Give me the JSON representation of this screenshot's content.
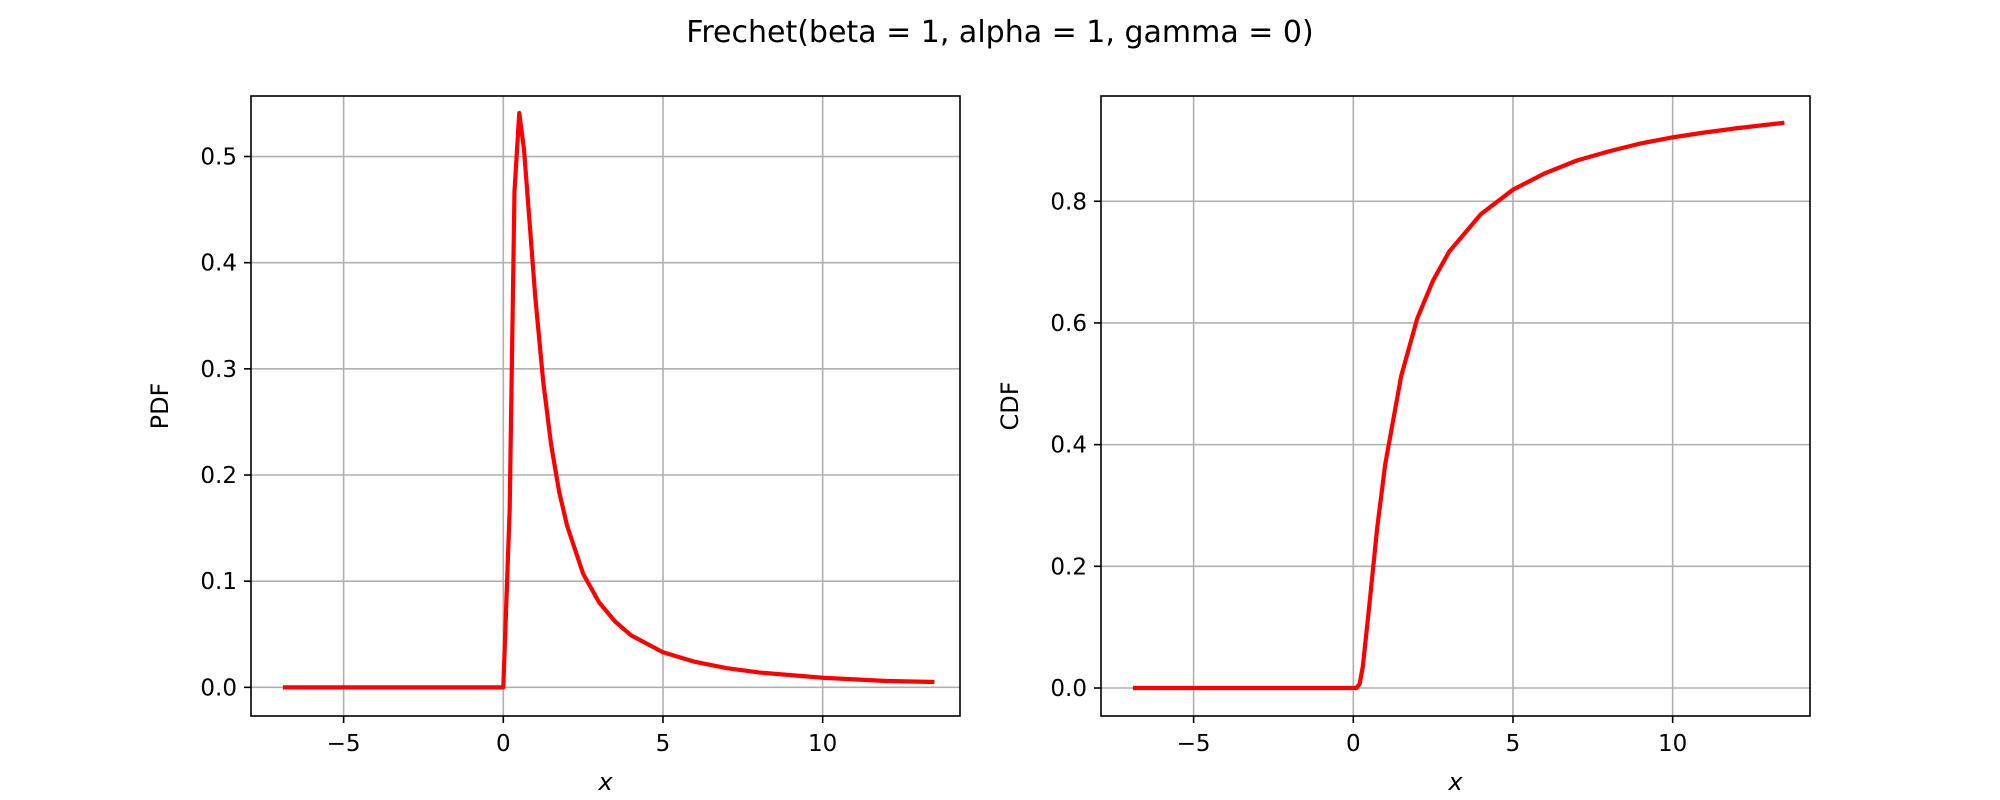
{
  "figure": {
    "suptitle": "Frechet(beta = 1, alpha = 1, gamma = 0)"
  },
  "colors": {
    "curve": "#ff0000",
    "grid": "#b0b0b0",
    "axes": "#000000"
  },
  "chart_data": [
    {
      "type": "line",
      "title": "",
      "xlabel": "x",
      "ylabel": "PDF",
      "xlim": [
        -7.9,
        14.3
      ],
      "ylim": [
        -0.027,
        0.557
      ],
      "xticks": [
        -5,
        0,
        5,
        10
      ],
      "xtick_labels": [
        "−5",
        "0",
        "5",
        "10"
      ],
      "yticks": [
        0.0,
        0.1,
        0.2,
        0.3,
        0.4,
        0.5
      ],
      "ytick_labels": [
        "0.0",
        "0.1",
        "0.2",
        "0.3",
        "0.4",
        "0.5"
      ],
      "grid": true,
      "legend": "none",
      "series": [
        {
          "x": [
            -6.9,
            -5.0,
            -3.0,
            -1.0,
            0.0,
            0.2,
            0.35,
            0.5,
            0.65,
            0.8,
            1.0,
            1.25,
            1.5,
            1.75,
            2.0,
            2.5,
            3.0,
            3.5,
            4.0,
            5.0,
            6.0,
            7.0,
            8.0,
            10.0,
            12.0,
            13.5
          ],
          "y": [
            0.0,
            0.0,
            0.0,
            0.0,
            0.0,
            0.168,
            0.467,
            0.541,
            0.506,
            0.447,
            0.368,
            0.288,
            0.228,
            0.184,
            0.152,
            0.107,
            0.08,
            0.062,
            0.049,
            0.033,
            0.024,
            0.018,
            0.014,
            0.009,
            0.006,
            0.005
          ]
        }
      ]
    },
    {
      "type": "line",
      "title": "",
      "xlabel": "x",
      "ylabel": "CDF",
      "xlim": [
        -7.9,
        14.3
      ],
      "ylim": [
        -0.046,
        0.973
      ],
      "xticks": [
        -5,
        0,
        5,
        10
      ],
      "xtick_labels": [
        "−5",
        "0",
        "5",
        "10"
      ],
      "yticks": [
        0.0,
        0.2,
        0.4,
        0.6,
        0.8
      ],
      "ytick_labels": [
        "0.0",
        "0.2",
        "0.4",
        "0.6",
        "0.8"
      ],
      "grid": true,
      "legend": "none",
      "series": [
        {
          "x": [
            -6.9,
            -5.0,
            -3.0,
            -1.0,
            0.0,
            0.1,
            0.2,
            0.3,
            0.5,
            0.75,
            1.0,
            1.5,
            2.0,
            2.5,
            3.0,
            4.0,
            5.0,
            6.0,
            7.0,
            8.0,
            9.0,
            10.0,
            11.0,
            12.0,
            13.5
          ],
          "y": [
            0.0,
            0.0,
            0.0,
            0.0,
            0.0,
            0.0,
            0.007,
            0.036,
            0.135,
            0.264,
            0.368,
            0.513,
            0.607,
            0.67,
            0.717,
            0.779,
            0.819,
            0.846,
            0.867,
            0.882,
            0.895,
            0.905,
            0.913,
            0.92,
            0.929
          ]
        }
      ]
    }
  ]
}
